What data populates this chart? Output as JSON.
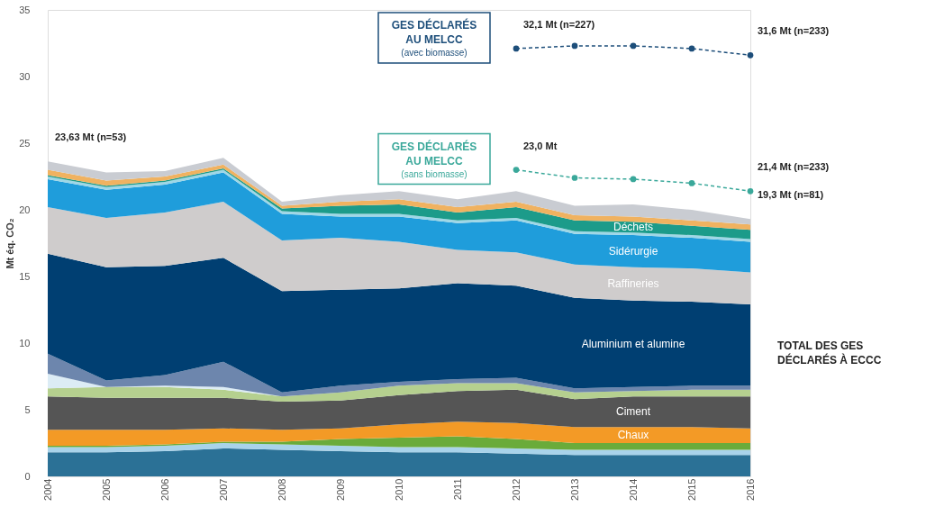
{
  "chart_data": {
    "type": "area",
    "stacked": true,
    "ylabel": "Mt éq. CO₂",
    "categories": [
      "2004",
      "2005",
      "2006",
      "2007",
      "2008",
      "2009",
      "2010",
      "2011",
      "2012",
      "2013",
      "2014",
      "2015",
      "2016"
    ],
    "ylim": [
      0,
      35
    ],
    "yticks": [
      0,
      5,
      10,
      15,
      20,
      25,
      30,
      35
    ],
    "grid": false,
    "series": [
      {
        "color": "#2b7196",
        "values": [
          1.8,
          1.8,
          1.9,
          2.1,
          2.0,
          1.9,
          1.8,
          1.8,
          1.7,
          1.6,
          1.6,
          1.6,
          1.6
        ]
      },
      {
        "color": "#a9d3ea",
        "values": [
          0.4,
          0.4,
          0.4,
          0.4,
          0.4,
          0.4,
          0.4,
          0.4,
          0.4,
          0.4,
          0.4,
          0.4,
          0.4
        ]
      },
      {
        "color": "#6aab3a",
        "values": [
          0.1,
          0.1,
          0.1,
          0.1,
          0.2,
          0.5,
          0.7,
          0.8,
          0.7,
          0.5,
          0.5,
          0.5,
          0.5
        ]
      },
      {
        "name": "Chaux",
        "color": "#f39a26",
        "values": [
          1.2,
          1.2,
          1.1,
          1.0,
          0.9,
          0.8,
          1.0,
          1.1,
          1.2,
          1.2,
          1.2,
          1.2,
          1.1
        ]
      },
      {
        "name": "Ciment",
        "color": "#555555",
        "values": [
          2.5,
          2.4,
          2.4,
          2.3,
          2.1,
          2.1,
          2.2,
          2.3,
          2.5,
          2.1,
          2.3,
          2.3,
          2.4
        ]
      },
      {
        "color": "#b5d08f",
        "values": [
          0.6,
          0.8,
          0.8,
          0.6,
          0.4,
          0.6,
          0.7,
          0.6,
          0.5,
          0.5,
          0.4,
          0.5,
          0.5
        ]
      },
      {
        "color": "#dcecf5",
        "values": [
          1.1,
          0,
          0.1,
          0.2,
          0,
          0,
          0,
          0,
          0,
          0,
          0,
          0,
          0
        ]
      },
      {
        "color": "#6d86ad",
        "values": [
          1.5,
          0.5,
          0.8,
          1.9,
          0.3,
          0.5,
          0.3,
          0.3,
          0.4,
          0.3,
          0.3,
          0.3,
          0.3
        ]
      },
      {
        "name": "Aluminium et alumine",
        "color": "#003f72",
        "values": [
          7.5,
          8.5,
          8.2,
          7.8,
          7.6,
          7.2,
          7.0,
          7.2,
          6.9,
          6.8,
          6.5,
          6.3,
          6.1
        ]
      },
      {
        "name": "Raffineries",
        "color": "#cfcccc",
        "values": [
          3.5,
          3.7,
          4.0,
          4.2,
          3.8,
          3.9,
          3.5,
          2.5,
          2.5,
          2.5,
          2.5,
          2.5,
          2.4
        ]
      },
      {
        "name": "Sidérurgie",
        "color": "#1f9ddb",
        "values": [
          2.1,
          2.1,
          2.1,
          2.2,
          2.0,
          1.6,
          1.9,
          2.0,
          2.4,
          2.3,
          2.4,
          2.3,
          2.3
        ]
      },
      {
        "color": "#9fd7e6",
        "values": [
          0.2,
          0.2,
          0.2,
          0.2,
          0.2,
          0.2,
          0.2,
          0.2,
          0.2,
          0.2,
          0.2,
          0.2,
          0.2
        ]
      },
      {
        "name": "Déchets",
        "color": "#1c9b8a",
        "values": [
          0.1,
          0.1,
          0.1,
          0.1,
          0.2,
          0.6,
          0.7,
          0.6,
          0.8,
          0.8,
          0.8,
          0.7,
          0.7
        ]
      },
      {
        "color": "#f0b260",
        "values": [
          0.4,
          0.4,
          0.3,
          0.3,
          0.2,
          0.3,
          0.4,
          0.4,
          0.4,
          0.4,
          0.4,
          0.4,
          0.4
        ]
      },
      {
        "color": "#c9ccd2",
        "values": [
          0.63,
          0.6,
          0.4,
          0.5,
          0.3,
          0.5,
          0.6,
          0.6,
          0.8,
          0.7,
          0.9,
          0.8,
          0.4
        ]
      },
      {
        "type": "line",
        "name": "GES DÉCLARÉS AU MELCC (avec biomasse)",
        "color": "#1d4e7a",
        "line_style": "dashed",
        "marker": "circle",
        "values": [
          null,
          null,
          null,
          null,
          null,
          null,
          null,
          null,
          32.1,
          32.3,
          32.3,
          32.1,
          31.6
        ]
      },
      {
        "type": "line",
        "name": "GES DÉCLARÉS AU MELCC (sans biomasse)",
        "color": "#3aa89a",
        "line_style": "dashed",
        "marker": "circle",
        "values": [
          null,
          null,
          null,
          null,
          null,
          null,
          null,
          null,
          23.0,
          22.4,
          22.3,
          22.0,
          21.4
        ]
      }
    ],
    "annotations": [
      {
        "text": "23,63 Mt (n=53)",
        "x": "2004",
        "y": 23.63
      },
      {
        "text": "32,1 Mt (n=227)",
        "x": "2012",
        "y": 32.1
      },
      {
        "text": "31,6 Mt (n=233)",
        "x": "2016",
        "y": 31.6
      },
      {
        "text": "23,0 Mt",
        "x": "2012",
        "y": 23.0
      },
      {
        "text": "21,4 Mt (n=233)",
        "x": "2016",
        "y": 21.4
      },
      {
        "text": "19,3 Mt (n=81)",
        "x": "2016",
        "y": 19.3
      },
      "TOTAL DES GES DÉCLARÉS À ECCC"
    ]
  }
}
